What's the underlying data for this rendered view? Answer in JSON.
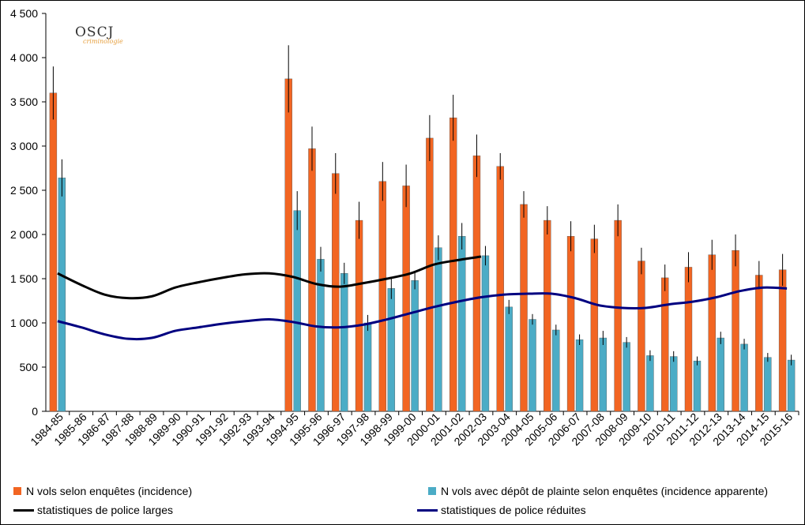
{
  "logo": {
    "text": "OSCJ",
    "subtext": "criminologie"
  },
  "chart_data": {
    "type": "bar",
    "ylim": [
      0,
      4500
    ],
    "yticks": [
      0,
      500,
      1000,
      1500,
      2000,
      2500,
      3000,
      3500,
      4000,
      4500
    ],
    "ytick_labels": [
      "0",
      "500",
      "1 000",
      "1 500",
      "2 000",
      "2 500",
      "3 000",
      "3 500",
      "4 000",
      "4 500"
    ],
    "categories": [
      "1984-85",
      "1985-86",
      "1986-87",
      "1987-88",
      "1988-89",
      "1989-90",
      "1990-91",
      "1991-92",
      "1992-93",
      "1993-94",
      "1994-95",
      "1995-96",
      "1996-97",
      "1997-98",
      "1998-99",
      "1999-00",
      "2000-01",
      "2001-02",
      "2002-03",
      "2003-04",
      "2004-05",
      "2005-06",
      "2006-07",
      "2007-08",
      "2008-09",
      "2009-10",
      "2010-11",
      "2011-12",
      "2012-13",
      "2013-14",
      "2014-15",
      "2015-16"
    ],
    "series": [
      {
        "name": "N vols selon enquêtes (incidence)",
        "kind": "bar",
        "color": "#f26522",
        "values": [
          3600,
          null,
          null,
          null,
          null,
          null,
          null,
          null,
          null,
          null,
          3760,
          2970,
          2690,
          2160,
          2600,
          2550,
          3090,
          3320,
          2890,
          2770,
          2340,
          2160,
          1980,
          1950,
          2160,
          1700,
          1510,
          1630,
          1770,
          1820,
          1540,
          1600
        ],
        "err_high": [
          3900,
          null,
          null,
          null,
          null,
          null,
          null,
          null,
          null,
          null,
          4140,
          3220,
          2920,
          2370,
          2820,
          2790,
          3350,
          3580,
          3130,
          2920,
          2490,
          2320,
          2150,
          2110,
          2340,
          1850,
          1660,
          1800,
          1940,
          2000,
          1700,
          1780
        ]
      },
      {
        "name": "N vols avec dépôt de plainte selon enquêtes (incidence apparente)",
        "kind": "bar",
        "color": "#4bacc6",
        "values": [
          2640,
          null,
          null,
          null,
          null,
          null,
          null,
          null,
          null,
          null,
          2270,
          1720,
          1560,
          1000,
          1390,
          1480,
          1850,
          1980,
          1760,
          1180,
          1040,
          920,
          810,
          830,
          780,
          630,
          620,
          570,
          830,
          760,
          610,
          580
        ],
        "err_high": [
          2850,
          null,
          null,
          null,
          null,
          null,
          null,
          null,
          null,
          null,
          2490,
          1860,
          1680,
          1090,
          1510,
          1580,
          1990,
          2130,
          1870,
          1260,
          1100,
          980,
          870,
          910,
          840,
          690,
          680,
          620,
          900,
          820,
          660,
          640
        ]
      },
      {
        "name": "statistiques de police larges",
        "kind": "line",
        "color": "#000000",
        "values": [
          1560,
          1430,
          1320,
          1280,
          1300,
          1400,
          1460,
          1510,
          1550,
          1560,
          1520,
          1440,
          1410,
          1450,
          1500,
          1560,
          1660,
          1710,
          1750,
          null,
          null,
          null,
          null,
          null,
          null,
          null,
          null,
          null,
          null,
          null,
          null,
          null
        ]
      },
      {
        "name": "statistiques de police réduites",
        "kind": "line",
        "color": "#000080",
        "values": [
          1020,
          950,
          870,
          820,
          830,
          910,
          950,
          990,
          1020,
          1040,
          1010,
          960,
          950,
          980,
          1040,
          1110,
          1180,
          1240,
          1290,
          1320,
          1330,
          1330,
          1280,
          1200,
          1170,
          1170,
          1210,
          1240,
          1290,
          1360,
          1400,
          1390
        ]
      }
    ]
  }
}
